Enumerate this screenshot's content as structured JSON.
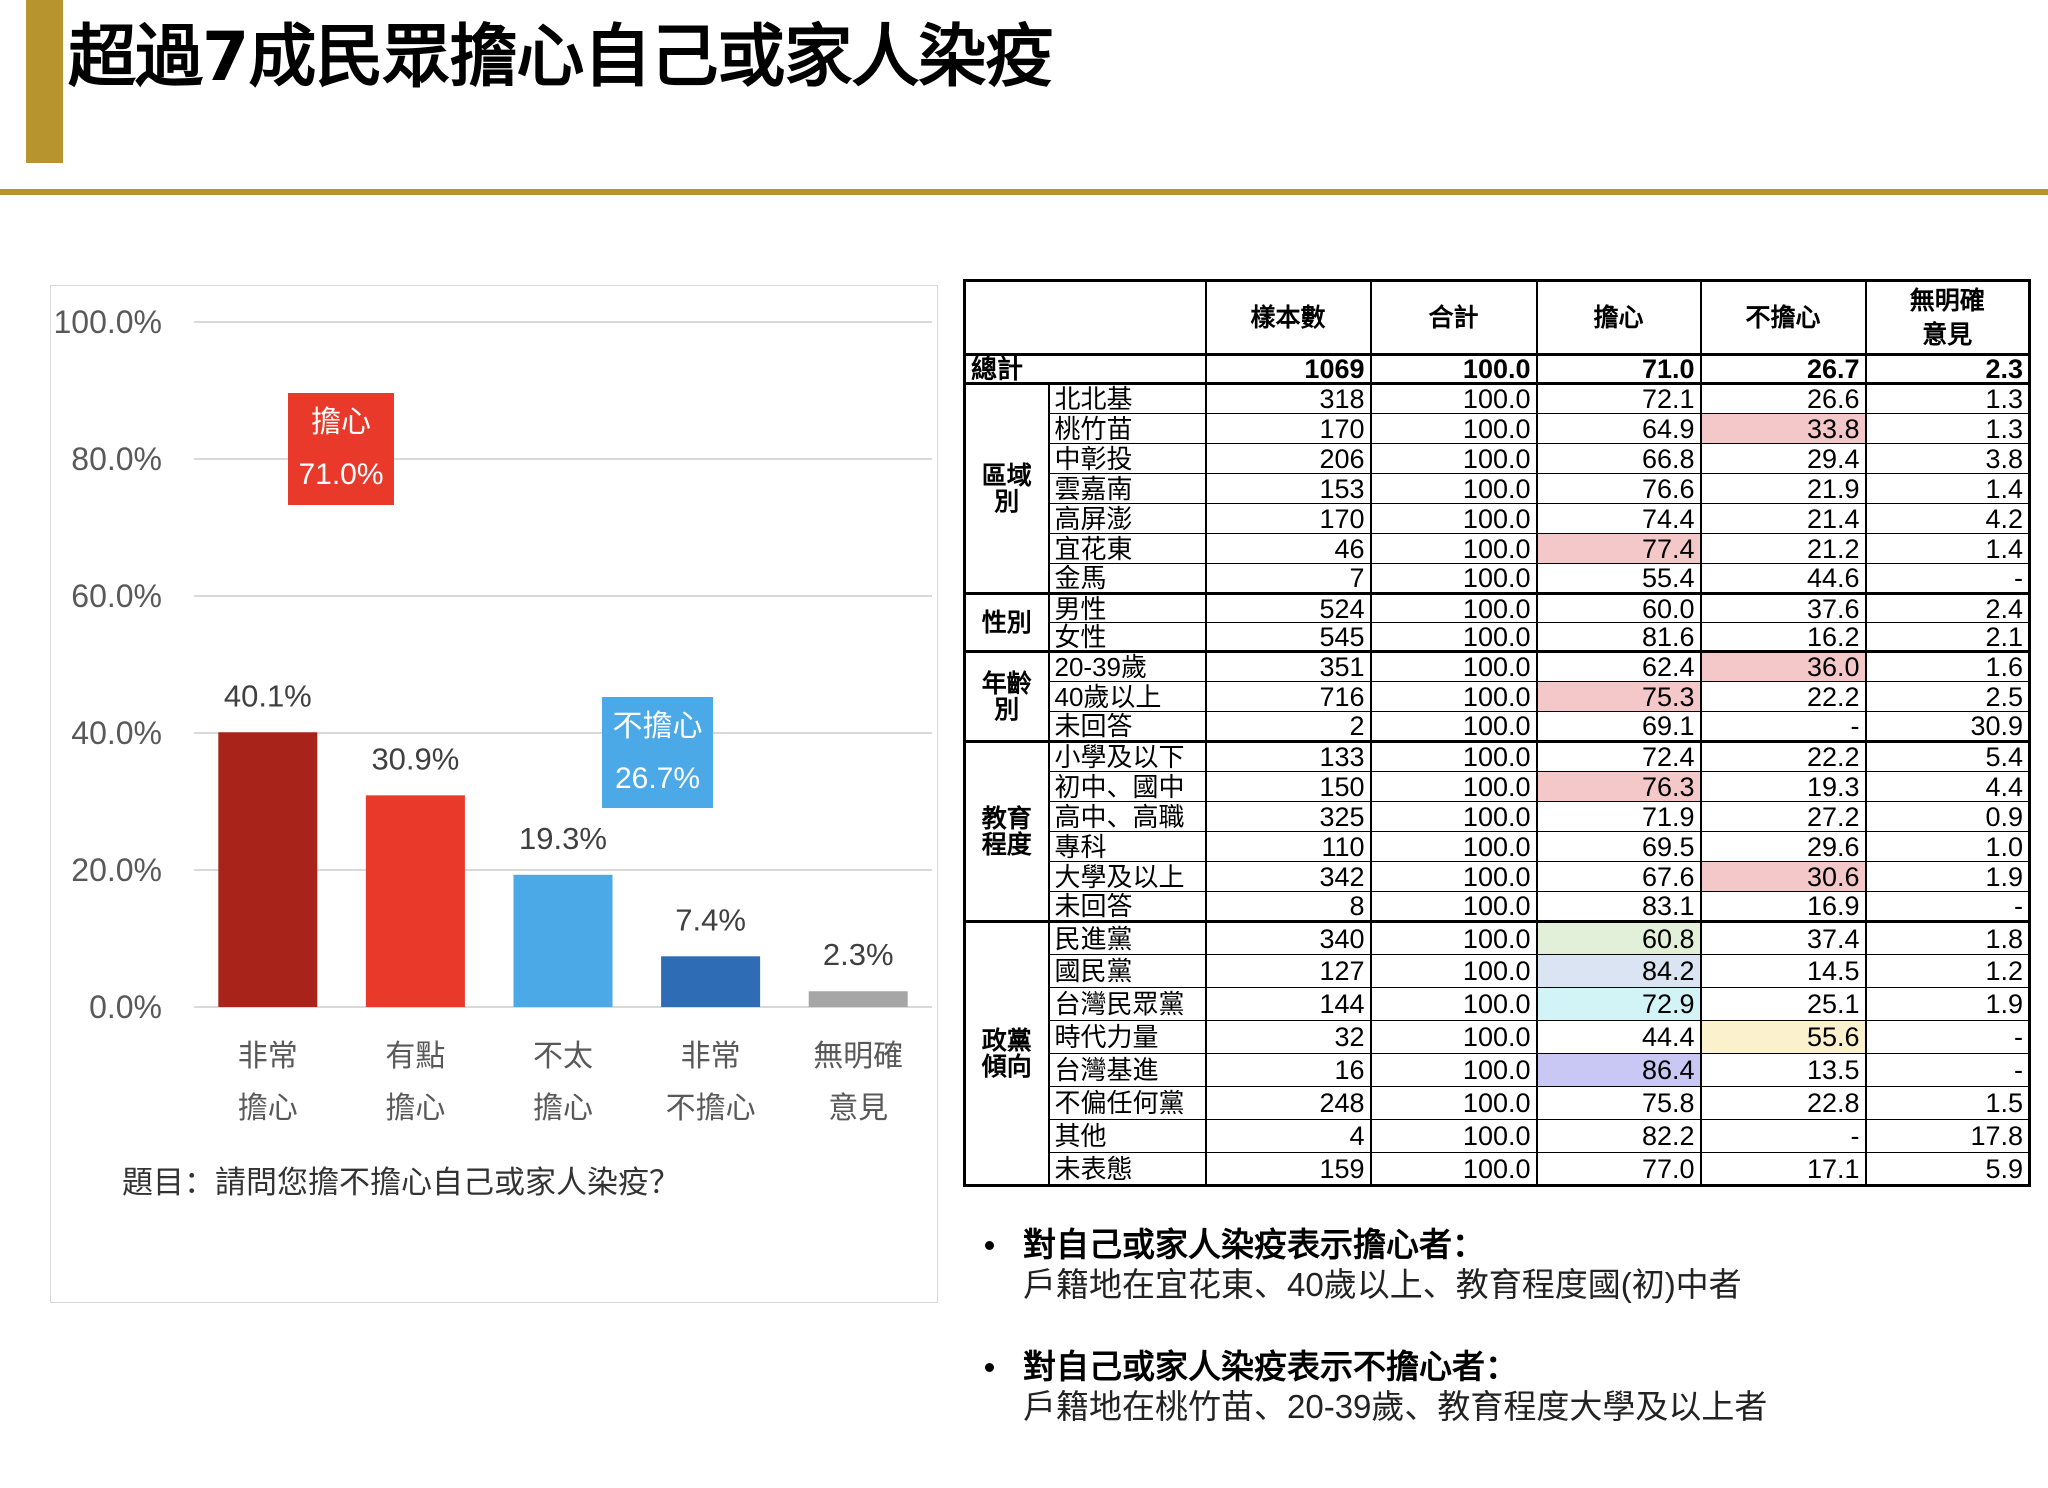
{
  "title": "超過7成民眾擔心自己或家人染疫",
  "theme": {
    "accent": "#B8942E"
  },
  "chart_data": {
    "type": "bar",
    "categories": [
      [
        "非常",
        "擔心"
      ],
      [
        "有點",
        "擔心"
      ],
      [
        "不太",
        "擔心"
      ],
      [
        "非常",
        "不擔心"
      ],
      [
        "無明確",
        "意見"
      ]
    ],
    "values": [
      40.1,
      30.9,
      19.3,
      7.4,
      2.3
    ],
    "value_labels": [
      "40.1%",
      "30.9%",
      "19.3%",
      "7.4%",
      "2.3%"
    ],
    "colors": [
      "#A82319",
      "#E8392B",
      "#4AA9E6",
      "#2E6DB5",
      "#A6A6A6"
    ],
    "ylim": [
      0,
      100
    ],
    "yticks": [
      0,
      20,
      40,
      60,
      80,
      100
    ],
    "ytick_labels": [
      "0.0%",
      "20.0%",
      "40.0%",
      "60.0%",
      "80.0%",
      "100.0%"
    ],
    "grid": true,
    "annotations": [
      {
        "lines": [
          "擔心",
          "71.0%"
        ],
        "color": "#E8392B"
      },
      {
        "lines": [
          "不擔心",
          "26.7%"
        ],
        "color": "#4AA9E6"
      }
    ],
    "note": "題目：請問您擔不擔心自己或家人染疫？"
  },
  "table": {
    "headers": [
      [
        "樣本數"
      ],
      [
        "合計"
      ],
      [
        "擔心"
      ],
      [
        "不擔心"
      ],
      [
        "無明確",
        "意見"
      ]
    ],
    "total_row": {
      "label": "總計",
      "values": [
        "1069",
        "100.0",
        "71.0",
        "26.7",
        "2.3"
      ]
    },
    "groups": [
      {
        "label": [
          "區域",
          "別"
        ],
        "rows": [
          {
            "label": "北北基",
            "values": [
              "318",
              "100.0",
              "72.1",
              "26.6",
              "1.3"
            ]
          },
          {
            "label": "桃竹苗",
            "values": [
              "170",
              "100.0",
              "64.9",
              "33.8",
              "1.3"
            ],
            "highlight": {
              "index": 3,
              "color": "#F4C7C8"
            }
          },
          {
            "label": "中彰投",
            "values": [
              "206",
              "100.0",
              "66.8",
              "29.4",
              "3.8"
            ]
          },
          {
            "label": "雲嘉南",
            "values": [
              "153",
              "100.0",
              "76.6",
              "21.9",
              "1.4"
            ]
          },
          {
            "label": "高屏澎",
            "values": [
              "170",
              "100.0",
              "74.4",
              "21.4",
              "4.2"
            ]
          },
          {
            "label": "宜花東",
            "values": [
              "46",
              "100.0",
              "77.4",
              "21.2",
              "1.4"
            ],
            "highlight": {
              "index": 2,
              "color": "#F4C7C8"
            }
          },
          {
            "label": "金馬",
            "values": [
              "7",
              "100.0",
              "55.4",
              "44.6",
              "-"
            ]
          }
        ]
      },
      {
        "label": [
          "性別"
        ],
        "rows": [
          {
            "label": "男性",
            "values": [
              "524",
              "100.0",
              "60.0",
              "37.6",
              "2.4"
            ]
          },
          {
            "label": "女性",
            "values": [
              "545",
              "100.0",
              "81.6",
              "16.2",
              "2.1"
            ]
          }
        ]
      },
      {
        "label": [
          "年齡",
          "別"
        ],
        "rows": [
          {
            "label": "20-39歲",
            "values": [
              "351",
              "100.0",
              "62.4",
              "36.0",
              "1.6"
            ],
            "highlight": {
              "index": 3,
              "color": "#F4C7C8"
            }
          },
          {
            "label": "40歲以上",
            "values": [
              "716",
              "100.0",
              "75.3",
              "22.2",
              "2.5"
            ],
            "highlight": {
              "index": 2,
              "color": "#F4C7C8"
            }
          },
          {
            "label": "未回答",
            "values": [
              "2",
              "100.0",
              "69.1",
              "-",
              "30.9"
            ]
          }
        ]
      },
      {
        "label": [
          "教育",
          "程度"
        ],
        "rows": [
          {
            "label": "小學及以下",
            "values": [
              "133",
              "100.0",
              "72.4",
              "22.2",
              "5.4"
            ]
          },
          {
            "label": "初中、國中",
            "values": [
              "150",
              "100.0",
              "76.3",
              "19.3",
              "4.4"
            ],
            "highlight": {
              "index": 2,
              "color": "#F4C7C8"
            }
          },
          {
            "label": "高中、高職",
            "values": [
              "325",
              "100.0",
              "71.9",
              "27.2",
              "0.9"
            ]
          },
          {
            "label": "專科",
            "values": [
              "110",
              "100.0",
              "69.5",
              "29.6",
              "1.0"
            ]
          },
          {
            "label": "大學及以上",
            "values": [
              "342",
              "100.0",
              "67.6",
              "30.6",
              "1.9"
            ],
            "highlight": {
              "index": 3,
              "color": "#F4C7C8"
            }
          },
          {
            "label": "未回答",
            "values": [
              "8",
              "100.0",
              "83.1",
              "16.9",
              "-"
            ]
          }
        ]
      },
      {
        "label": [
          "政黨",
          "傾向"
        ],
        "rows": [
          {
            "label": "民進黨",
            "values": [
              "340",
              "100.0",
              "60.8",
              "37.4",
              "1.8"
            ],
            "highlight": {
              "index": 2,
              "color": "#E2EFD9"
            }
          },
          {
            "label": "國民黨",
            "values": [
              "127",
              "100.0",
              "84.2",
              "14.5",
              "1.2"
            ],
            "highlight": {
              "index": 2,
              "color": "#DBE4F2"
            }
          },
          {
            "label": "台灣民眾黨",
            "values": [
              "144",
              "100.0",
              "72.9",
              "25.1",
              "1.9"
            ],
            "highlight": {
              "index": 2,
              "color": "#D3F4F7"
            }
          },
          {
            "label": "時代力量",
            "values": [
              "32",
              "100.0",
              "44.4",
              "55.6",
              "-"
            ],
            "highlight": {
              "index": 3,
              "color": "#FBF1CD"
            }
          },
          {
            "label": "台灣基進",
            "values": [
              "16",
              "100.0",
              "86.4",
              "13.5",
              "-"
            ],
            "highlight": {
              "index": 2,
              "color": "#C9C8F4"
            }
          },
          {
            "label": "不偏任何黨",
            "values": [
              "248",
              "100.0",
              "75.8",
              "22.8",
              "1.5"
            ]
          },
          {
            "label": "其他",
            "values": [
              "4",
              "100.0",
              "82.2",
              "-",
              "17.8"
            ]
          },
          {
            "label": "未表態",
            "values": [
              "159",
              "100.0",
              "77.0",
              "17.1",
              "5.9"
            ]
          }
        ]
      }
    ]
  },
  "summary": [
    {
      "heading": "對自己或家人染疫表示擔心者：",
      "detail": "戶籍地在宜花東、40歲以上、教育程度國(初)中者"
    },
    {
      "heading": "對自己或家人染疫表示不擔心者：",
      "detail": "戶籍地在桃竹苗、20-39歲、教育程度大學及以上者"
    }
  ]
}
